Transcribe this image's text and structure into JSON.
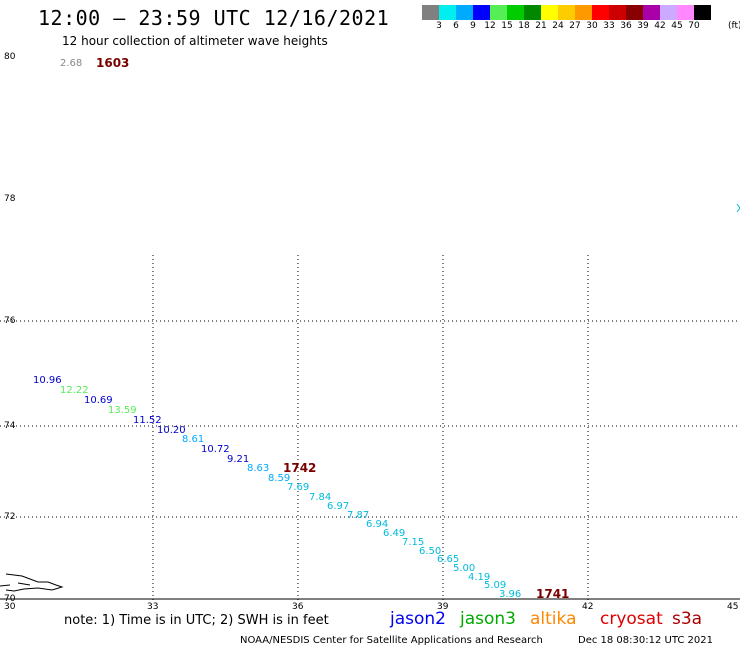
{
  "header": {
    "title": "12:00 — 23:59 UTC 12/16/2021",
    "subtitle": "12 hour collection of altimeter wave heights"
  },
  "color_scale": {
    "colors": [
      "#808080",
      "#00eeee",
      "#00aaff",
      "#0000ff",
      "#55ee55",
      "#00cc00",
      "#008800",
      "#ffff00",
      "#ffcc00",
      "#ff9900",
      "#ff0000",
      "#cc0000",
      "#880000",
      "#aa00aa",
      "#ccaaff",
      "#ff88ff",
      "#000000"
    ],
    "labels": [
      "3",
      "6",
      "9",
      "12",
      "15",
      "18",
      "21",
      "24",
      "27",
      "30",
      "33",
      "36",
      "39",
      "42",
      "45",
      "70"
    ],
    "unit": "(ft)"
  },
  "axes": {
    "lon_labels": [
      "30",
      "33",
      "36",
      "39",
      "42",
      "45"
    ],
    "lat_labels": [
      "80",
      "78",
      "76",
      "74",
      "72",
      "70"
    ]
  },
  "observations": [
    {
      "text": "2.68",
      "color": "#888888"
    },
    {
      "text": "10.96",
      "color": "#0000cc"
    },
    {
      "text": "12.22",
      "color": "#55ee55"
    },
    {
      "text": "10.69",
      "color": "#0000cc"
    },
    {
      "text": "13.59",
      "color": "#55ee55"
    },
    {
      "text": "11.52",
      "color": "#0000cc"
    },
    {
      "text": "10.20",
      "color": "#0000cc"
    },
    {
      "text": "8.61",
      "color": "#00aaff"
    },
    {
      "text": "10.72",
      "color": "#0000cc"
    },
    {
      "text": "9.21",
      "color": "#0000cc"
    },
    {
      "text": "8.63",
      "color": "#00aaff"
    },
    {
      "text": "8.59",
      "color": "#00aaff"
    },
    {
      "text": "7.69",
      "color": "#00bbdd"
    },
    {
      "text": "7.84",
      "color": "#00bbdd"
    },
    {
      "text": "6.97",
      "color": "#00bbdd"
    },
    {
      "text": "7.87",
      "color": "#00bbdd"
    },
    {
      "text": "6.94",
      "color": "#00bbdd"
    },
    {
      "text": "6.49",
      "color": "#00bbdd"
    },
    {
      "text": "7.15",
      "color": "#00bbdd"
    },
    {
      "text": "6.50",
      "color": "#00bbdd"
    },
    {
      "text": "6.65",
      "color": "#00bbdd"
    },
    {
      "text": "5.00",
      "color": "#00bbdd"
    },
    {
      "text": "4.19",
      "color": "#00bbdd"
    },
    {
      "text": "5.09",
      "color": "#00bbdd"
    },
    {
      "text": "3.96",
      "color": "#00bbdd"
    }
  ],
  "times": [
    "1603",
    "1742",
    "1741"
  ],
  "footer": {
    "note": "note: 1) Time is in UTC; 2) SWH is in feet",
    "satellites": [
      {
        "name": "jason2",
        "color": "#0000ee"
      },
      {
        "name": "jason3",
        "color": "#00aa00"
      },
      {
        "name": "altika",
        "color": "#ff8800"
      },
      {
        "name": "cryosat",
        "color": "#dd0000"
      },
      {
        "name": "s3a",
        "color": "#aa0000"
      }
    ],
    "credit": "NOAA/NESDIS Center for Satellite Applications and Research",
    "issued": "Dec 18 08:30:12 UTC 2021"
  }
}
